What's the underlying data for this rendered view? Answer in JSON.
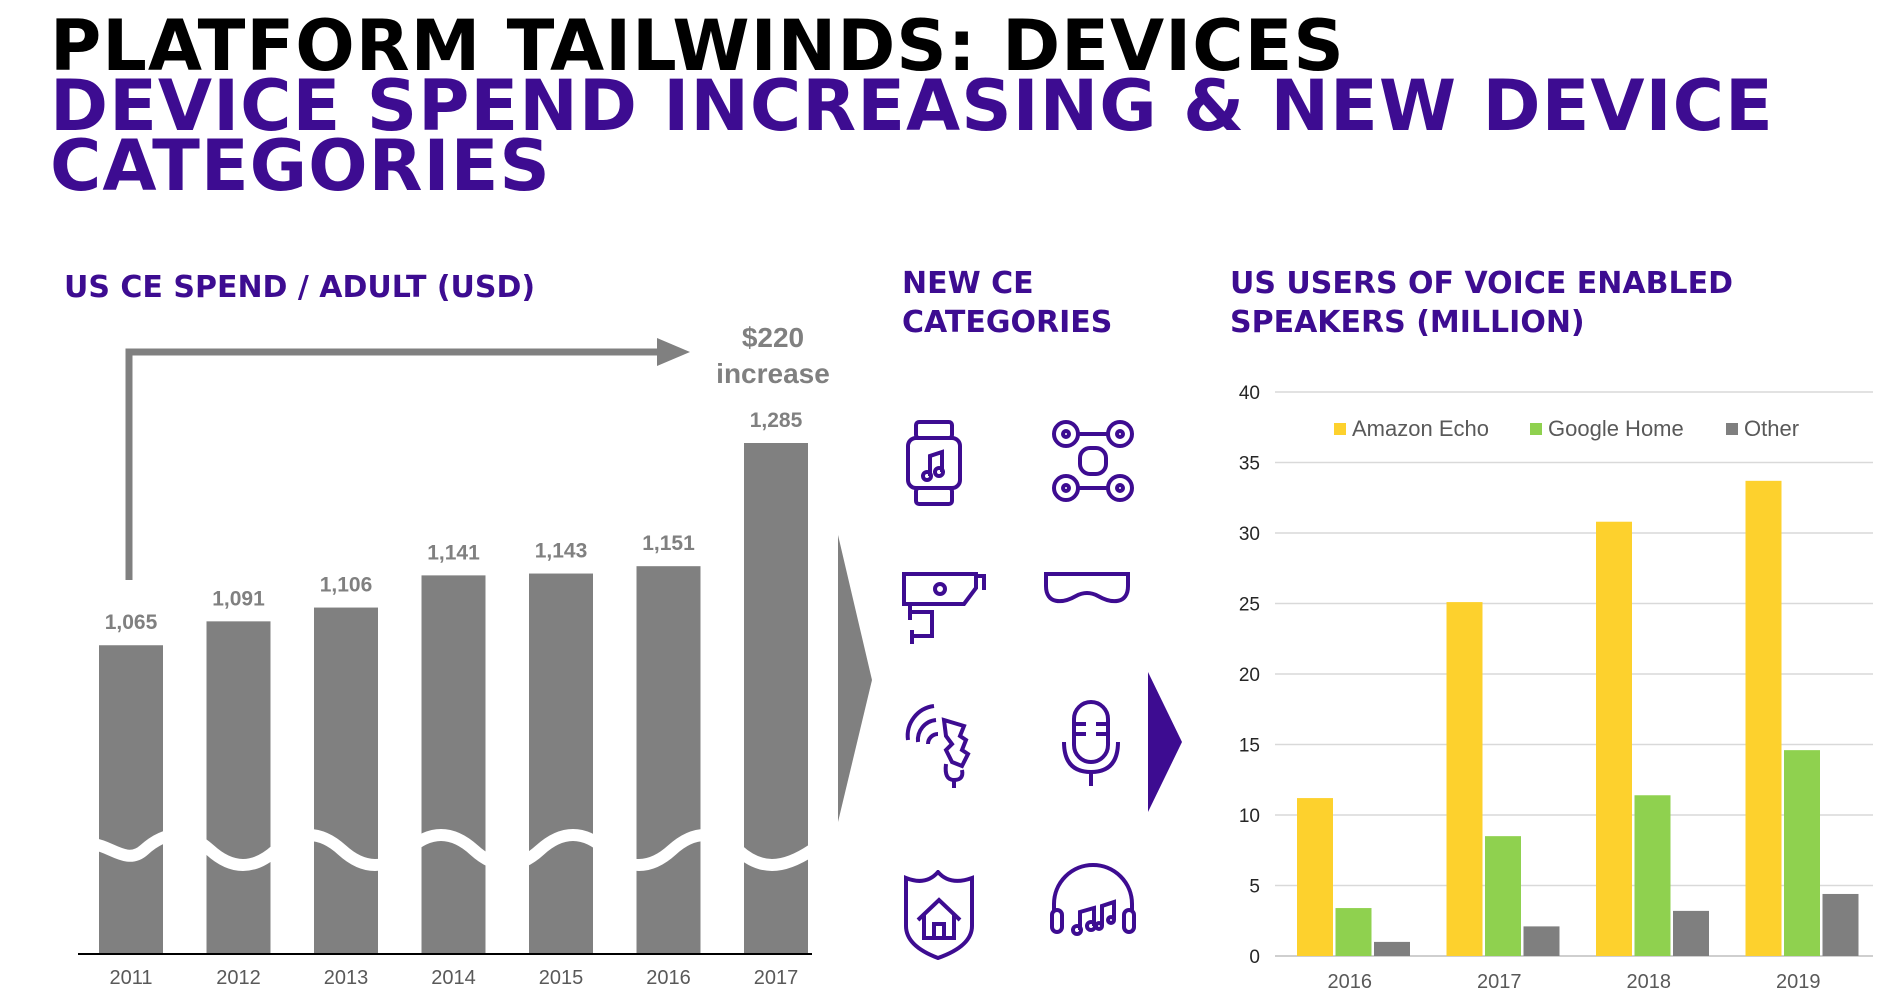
{
  "header": {
    "line1": "PLATFORM TAILWINDS: DEVICES",
    "line2": "DEVICE SPEND INCREASING & NEW DEVICE",
    "line3": "CATEGORIES"
  },
  "sections": {
    "spend_title": "US CE SPEND / ADULT (USD)",
    "categories_title_1": "NEW CE",
    "categories_title_2": "CATEGORIES",
    "voice_title_1": "US USERS OF VOICE ENABLED",
    "voice_title_2": "SPEAKERS (MILLION)"
  },
  "callout": {
    "line1": "$220",
    "line2": "increase"
  },
  "icons": [
    "smartwatch-icon",
    "drone-icon",
    "security-camera-icon",
    "vr-goggles-icon",
    "smart-bulb-icon",
    "microphone-icon",
    "smart-home-icon",
    "headphones-icon"
  ],
  "colors": {
    "purple": "#3d0c91",
    "bar_gray": "#808080",
    "echo": "#fdd12d",
    "home": "#8fd14f",
    "other": "#7f7f7f"
  },
  "chart_data": [
    {
      "type": "bar",
      "categories": [
        "2011",
        "2012",
        "2013",
        "2014",
        "2015",
        "2016",
        "2017"
      ],
      "values": [
        1065,
        1091,
        1106,
        1141,
        1143,
        1151,
        1285
      ],
      "data_labels": [
        "1,065",
        "1,091",
        "1,106",
        "1,141",
        "1,143",
        "1,151",
        "1,285"
      ],
      "title": "US CE SPEND / ADULT (USD)",
      "axis_break": true,
      "annotation": "$220 increase"
    },
    {
      "type": "bar",
      "categories": [
        "2016",
        "2017",
        "2018",
        "2019"
      ],
      "series": [
        {
          "name": "Amazon Echo",
          "values": [
            11.2,
            25.1,
            30.8,
            33.7
          ]
        },
        {
          "name": "Google Home",
          "values": [
            3.4,
            8.5,
            11.4,
            14.6
          ]
        },
        {
          "name": "Other",
          "values": [
            1.0,
            2.1,
            3.2,
            4.4
          ]
        }
      ],
      "y_ticks": [
        "0",
        "5",
        "10",
        "15",
        "20",
        "25",
        "30",
        "35",
        "40"
      ],
      "ylim": [
        0,
        40
      ],
      "title": "US USERS OF VOICE ENABLED SPEAKERS (MILLION)",
      "legend": "top",
      "grid": true
    }
  ]
}
